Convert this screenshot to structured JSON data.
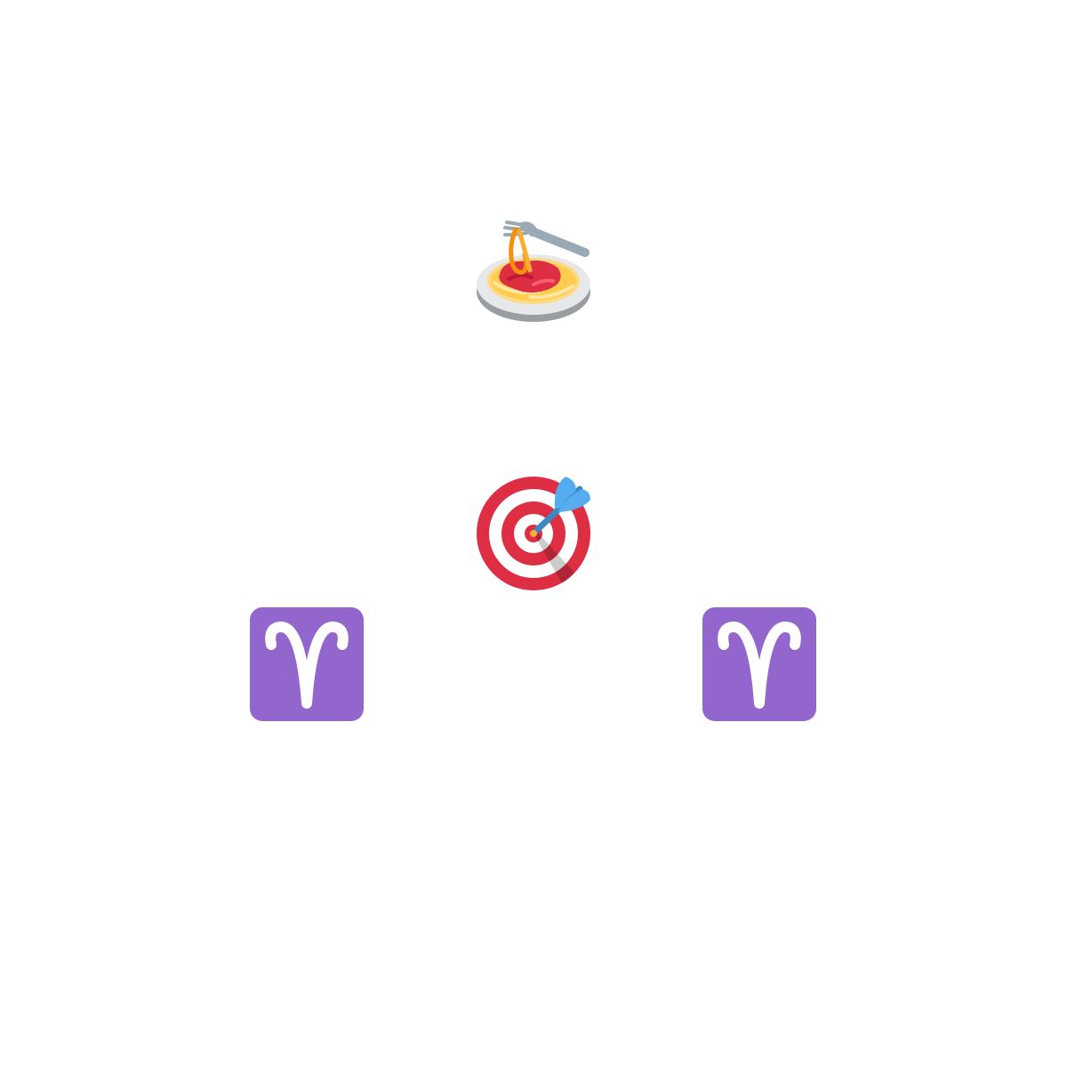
{
  "icons": [
    {
      "name": "spaghetti-icon"
    },
    {
      "name": "direct-hit-target-icon"
    },
    {
      "name": "aries-sign-icon"
    },
    {
      "name": "aries-sign-icon"
    }
  ],
  "colors": {
    "aries_bg": "#9266CC",
    "target_red": "#DD2E44",
    "dart_blue": "#55ACEE",
    "pasta_yellow": "#FFD983",
    "sauce_red": "#DD2E44",
    "plate_gray": "#99AAB5"
  }
}
